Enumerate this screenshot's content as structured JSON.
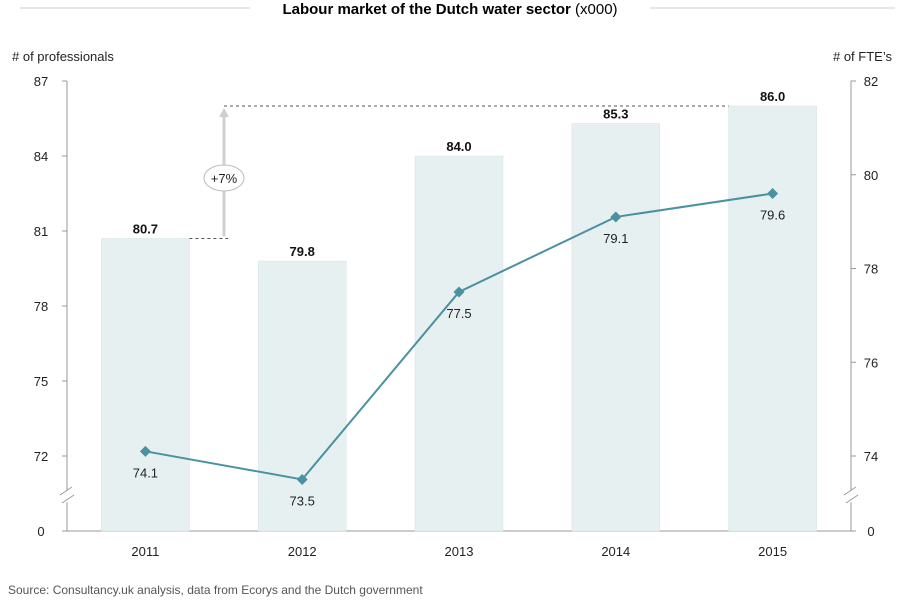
{
  "colors": {
    "bar_fill": "#e6f0f1",
    "bar_stroke": "#d2e2e4",
    "line": "#4a91a2",
    "axis": "#999999",
    "dashed": "#555555",
    "arrow": "#d0d0d0"
  },
  "chart_data": {
    "type": "bar",
    "title_bold": "Labour market of the Dutch water sector",
    "title_rest": " (x000)",
    "ylabel_left": "# of professionals",
    "ylabel_right": "# of FTE’s",
    "source": "Source: Consultancy.uk analysis, data from Ecorys and the Dutch government",
    "categories": [
      "2011",
      "2012",
      "2013",
      "2014",
      "2015"
    ],
    "left_ticks": [
      "87",
      "84",
      "81",
      "78",
      "75",
      "72",
      "0"
    ],
    "right_ticks": [
      "82",
      "80",
      "78",
      "76",
      "74",
      "0"
    ],
    "left_axis_range": [
      72,
      87
    ],
    "left_axis_break": true,
    "right_axis_range": [
      74,
      82
    ],
    "right_axis_break": true,
    "series": [
      {
        "type": "bar",
        "axis": "left",
        "values": [
          80.7,
          79.8,
          84.0,
          85.3,
          86.0
        ],
        "labels": [
          "80.7",
          "79.8",
          "84.0",
          "85.3",
          "86.0"
        ]
      },
      {
        "type": "line",
        "axis": "right",
        "marker": "diamond",
        "values": [
          74.1,
          73.5,
          77.5,
          79.1,
          79.6
        ],
        "labels": [
          "74.1",
          "73.5",
          "77.5",
          "79.1",
          "79.6"
        ]
      }
    ],
    "annotation": {
      "text": "+7%",
      "from": "2011",
      "to": "2015"
    }
  }
}
